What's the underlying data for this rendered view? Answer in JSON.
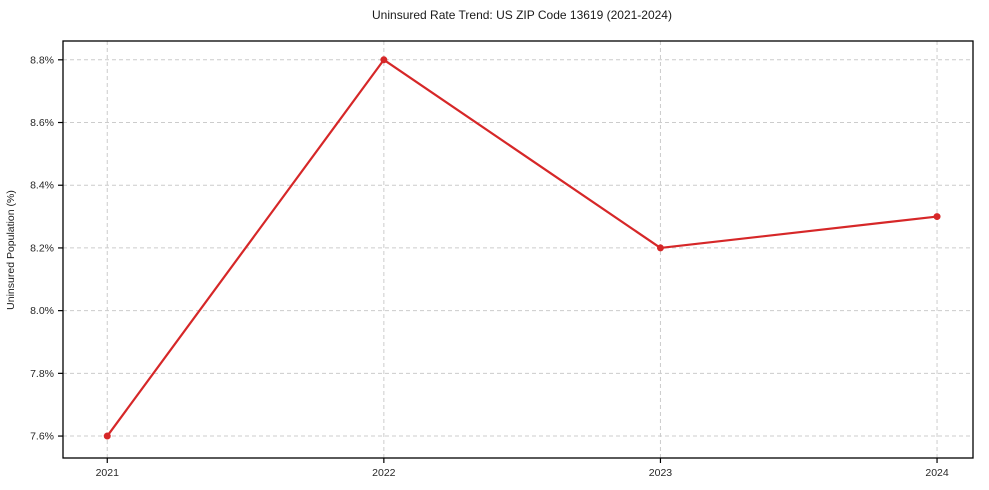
{
  "chart_data": {
    "type": "line",
    "title": "Uninsured Rate Trend: US ZIP Code 13619 (2021-2024)",
    "xlabel": "",
    "ylabel": "Uninsured Population (%)",
    "x": [
      2021,
      2022,
      2023,
      2024
    ],
    "x_tick_labels": [
      "2021",
      "2022",
      "2023",
      "2024"
    ],
    "series": [
      {
        "name": "Uninsured Rate",
        "values": [
          7.6,
          8.8,
          8.2,
          8.3
        ]
      }
    ],
    "y_ticks": [
      7.6,
      7.8,
      8.0,
      8.2,
      8.4,
      8.6,
      8.8
    ],
    "y_tick_labels": [
      "7.6%",
      "7.8%",
      "8.0%",
      "8.2%",
      "8.4%",
      "8.6%",
      "8.8%"
    ],
    "xlim": [
      2020.84,
      2024.13
    ],
    "ylim": [
      7.53,
      8.86
    ],
    "grid": true,
    "legend": "none",
    "line_color": "#d62728",
    "marker": "circle",
    "marker_radius": 3.5,
    "grid_color": "#cccccc",
    "spine_color": "#000000",
    "background": "#ffffff"
  }
}
